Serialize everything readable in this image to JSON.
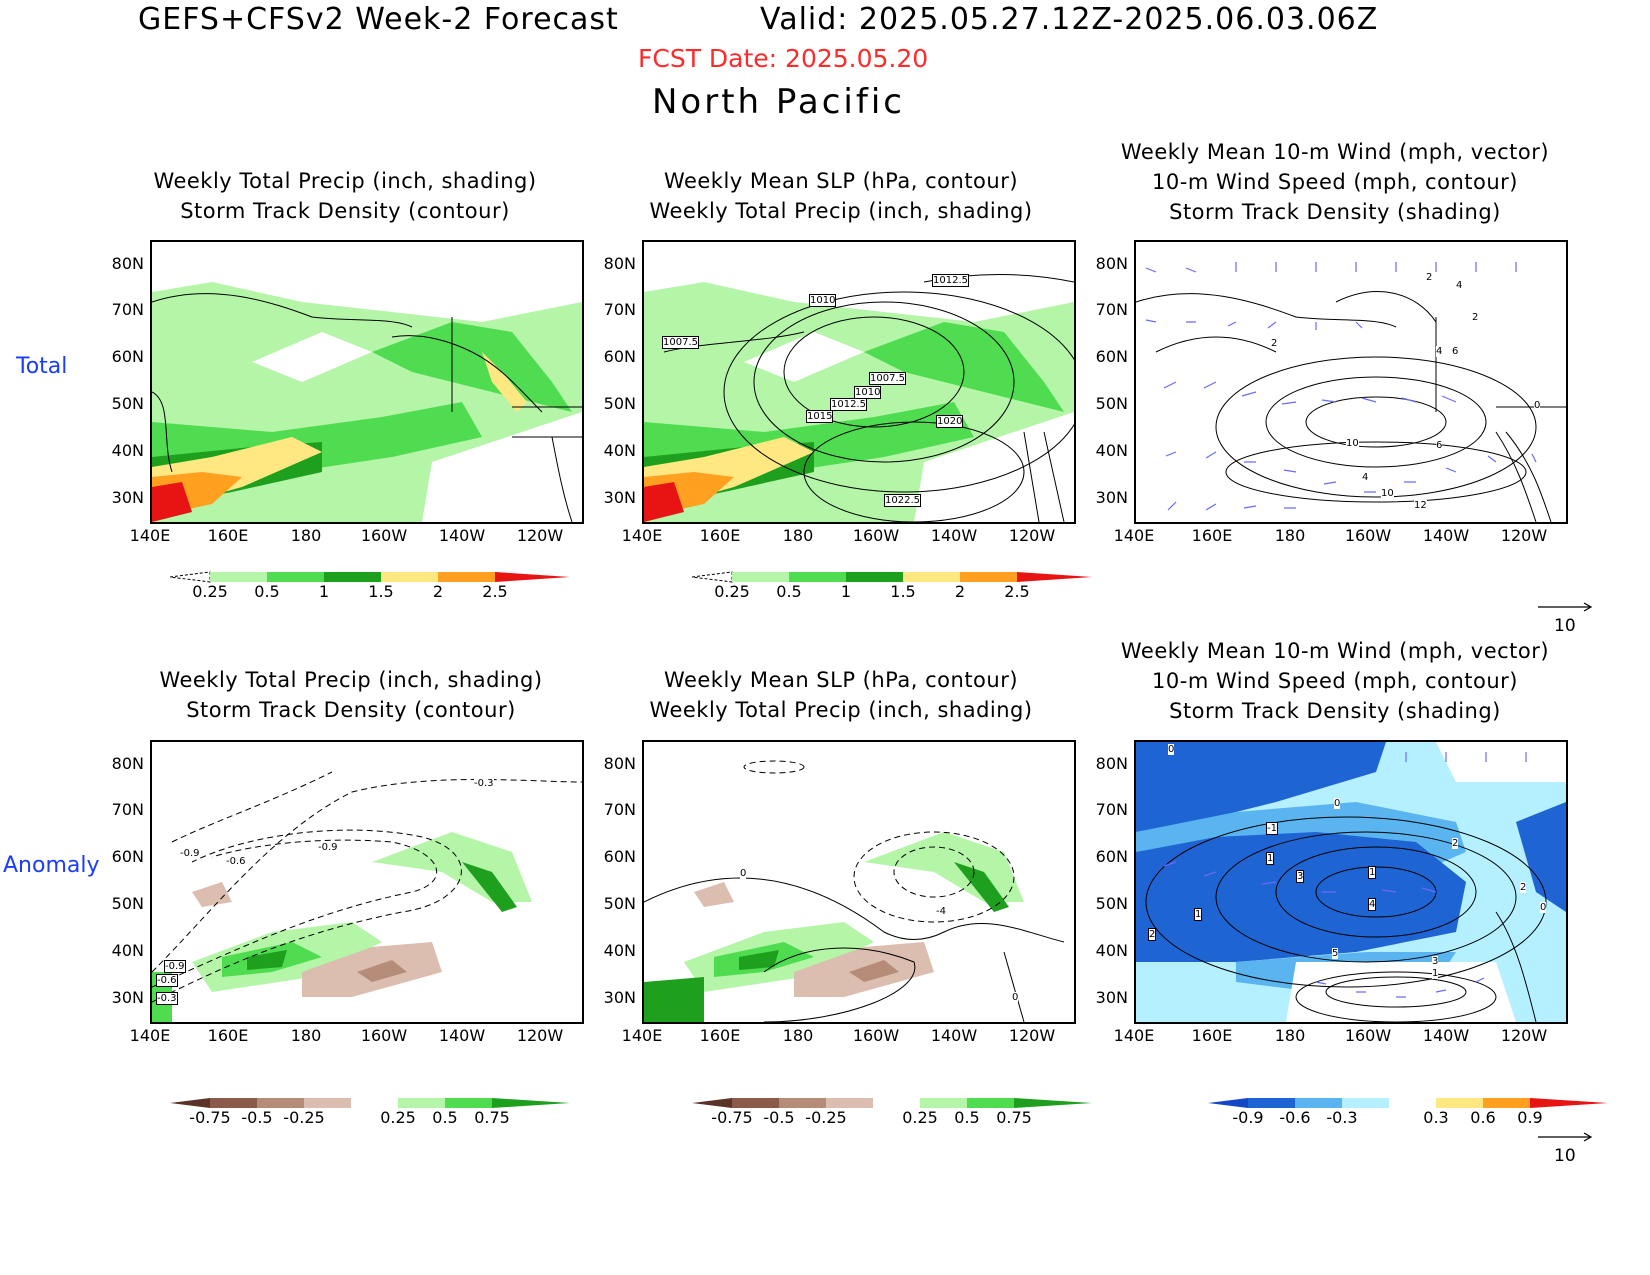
{
  "header": {
    "title": "GEFS+CFSv2 Week-2 Forecast",
    "valid": "Valid: 2025.05.27.12Z-2025.06.03.06Z",
    "fcst_date": "FCST Date: 2025.05.20",
    "region": "North Pacific"
  },
  "rows": {
    "total": "Total",
    "anomaly": "Anomaly"
  },
  "panels": {
    "p1": {
      "line1": "Weekly Total Precip (inch, shading)",
      "line2": "Storm Track Density (contour)"
    },
    "p2": {
      "line1": "Weekly Mean SLP (hPa, contour)",
      "line2": "Weekly Total Precip (inch, shading)"
    },
    "p3": {
      "line1": "Weekly Mean 10-m Wind (mph, vector)",
      "line2": "10-m Wind Speed (mph, contour)",
      "line3": "Storm Track Density (shading)"
    }
  },
  "axes": {
    "lat": [
      "80N",
      "70N",
      "60N",
      "50N",
      "40N",
      "30N"
    ],
    "lon": [
      "140E",
      "160E",
      "180",
      "160W",
      "140W",
      "120W"
    ]
  },
  "colorbars": {
    "precip_total": [
      "0.25",
      "0.5",
      "1",
      "1.5",
      "2",
      "2.5"
    ],
    "precip_anom": [
      "-0.75",
      "-0.5",
      "-0.25",
      "0.25",
      "0.5",
      "0.75"
    ],
    "std_anom": [
      "-0.9",
      "-0.6",
      "-0.3",
      "0.3",
      "0.6",
      "0.9"
    ]
  },
  "contour_labels": {
    "slp_total": [
      "1012.5",
      "1010",
      "1007.5",
      "1007.5",
      "1010",
      "1012.5",
      "1015",
      "1020",
      "1022.5"
    ],
    "std_anom": [
      "-0.3",
      "-0.9",
      "-0.6",
      "-0.9",
      "-0.9",
      "-0.6",
      "-0.3"
    ],
    "slp_anom": [
      "0",
      "-4",
      "0"
    ],
    "wind_total": [
      "2",
      "4",
      "2",
      "2",
      "4",
      "6",
      "10",
      "6",
      "4",
      "10",
      "12",
      "0"
    ],
    "wind_anom": [
      "0",
      "0",
      "-1",
      "1",
      "3",
      "1",
      "4",
      "1",
      "2",
      "2",
      "5",
      "3",
      "1",
      "2",
      "0"
    ]
  },
  "vector_reference": "10",
  "colors": {
    "title_red": "#ff2a2a",
    "row_label": "#1a3cff",
    "precip_light": "#b4f5a8",
    "precip_mid": "#50dc50",
    "precip_dark": "#1ea01e",
    "precip_yellow": "#ffe882",
    "precip_orange": "#ffa020",
    "precip_red": "#e81414",
    "anom_brown_dark": "#8c5a4a",
    "anom_brown_mid": "#b48c78",
    "anom_brown_light": "#dcbeb0",
    "blue_dark": "#1e64d2",
    "blue_mid": "#5ab4f0",
    "blue_light": "#b4f0ff",
    "vector": "#6a6aff"
  }
}
